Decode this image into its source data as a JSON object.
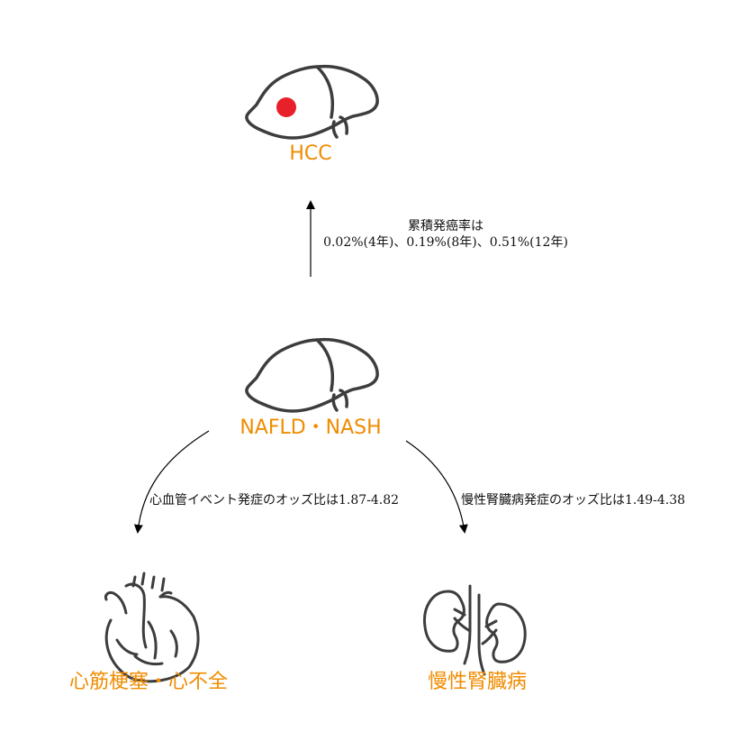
{
  "colors": {
    "node_label": "#f08c00",
    "outline": "#3d3d3d",
    "tumor": "#e8202a",
    "edge": "#000000"
  },
  "nodes": {
    "hcc": {
      "label": "HCC",
      "icon": "liver-tumor-icon"
    },
    "nafld": {
      "label": "NAFLD・NASH",
      "icon": "liver-icon"
    },
    "mi": {
      "label": "心筋梗塞・心不全",
      "icon": "heart-icon"
    },
    "ckd": {
      "label": "慢性腎臓病",
      "icon": "kidneys-icon"
    }
  },
  "edges": {
    "to_hcc": {
      "label_line1": "累積発癌率は",
      "label_line2": "0.02%(4年)、0.19%(8年)、0.51%(12年)"
    },
    "to_mi": {
      "label": "心血管イベント発症のオッズ比は1.87-4.82"
    },
    "to_ckd": {
      "label": "慢性腎臓病発症のオッズ比は1.49-4.38"
    }
  }
}
